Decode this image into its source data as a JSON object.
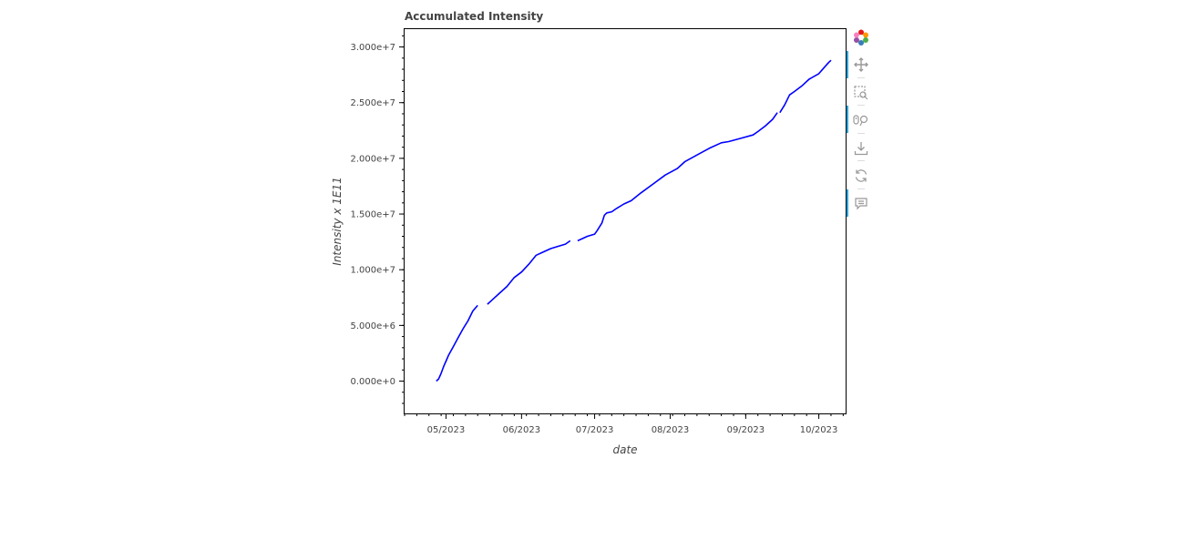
{
  "chart_data": {
    "type": "line",
    "title": "Accumulated Intensity",
    "xlabel": "date",
    "ylabel": "Intensity x 1E11",
    "x_ticks": [
      "05/2023",
      "06/2023",
      "07/2023",
      "08/2023",
      "09/2023",
      "10/2023"
    ],
    "y_ticks": [
      "0.000e+0",
      "5.000e+6",
      "1.000e+7",
      "1.500e+7",
      "2.000e+7",
      "2.500e+7",
      "3.000e+7"
    ],
    "xlim": [
      "2023-04-14",
      "2023-10-12"
    ],
    "ylim": [
      -2900000,
      31600000
    ],
    "grid": false,
    "legend": "none",
    "color": "#0000ff",
    "series": [
      {
        "segments": [
          [
            [
              "2023-04-27",
              0
            ],
            [
              "2023-04-28",
              200000
            ],
            [
              "2023-04-29",
              700000
            ],
            [
              "2023-04-30",
              1300000
            ],
            [
              "2023-05-01",
              1800000
            ],
            [
              "2023-05-02",
              2300000
            ],
            [
              "2023-05-04",
              3100000
            ],
            [
              "2023-05-06",
              3900000
            ],
            [
              "2023-05-08",
              4700000
            ],
            [
              "2023-05-10",
              5400000
            ],
            [
              "2023-05-12",
              6300000
            ],
            [
              "2023-05-14",
              6800000
            ]
          ],
          [
            [
              "2023-05-18",
              6900000
            ],
            [
              "2023-05-20",
              7300000
            ],
            [
              "2023-05-23",
              7900000
            ],
            [
              "2023-05-26",
              8500000
            ],
            [
              "2023-05-29",
              9300000
            ],
            [
              "2023-06-01",
              9800000
            ],
            [
              "2023-06-04",
              10500000
            ],
            [
              "2023-06-07",
              11300000
            ],
            [
              "2023-06-10",
              11600000
            ],
            [
              "2023-06-13",
              11900000
            ],
            [
              "2023-06-16",
              12100000
            ],
            [
              "2023-06-19",
              12300000
            ],
            [
              "2023-06-21",
              12600000
            ]
          ],
          [
            [
              "2023-06-24",
              12600000
            ],
            [
              "2023-06-26",
              12800000
            ],
            [
              "2023-06-28",
              13000000
            ],
            [
              "2023-07-01",
              13200000
            ],
            [
              "2023-07-02",
              13500000
            ],
            [
              "2023-07-04",
              14200000
            ],
            [
              "2023-07-05",
              14900000
            ],
            [
              "2023-07-06",
              15100000
            ],
            [
              "2023-07-08",
              15200000
            ],
            [
              "2023-07-10",
              15500000
            ],
            [
              "2023-07-13",
              15900000
            ],
            [
              "2023-07-16",
              16200000
            ],
            [
              "2023-07-20",
              16900000
            ],
            [
              "2023-07-25",
              17700000
            ],
            [
              "2023-07-30",
              18500000
            ],
            [
              "2023-08-04",
              19100000
            ],
            [
              "2023-08-07",
              19700000
            ],
            [
              "2023-08-12",
              20300000
            ],
            [
              "2023-08-17",
              20900000
            ],
            [
              "2023-08-22",
              21400000
            ],
            [
              "2023-08-25",
              21500000
            ],
            [
              "2023-08-30",
              21800000
            ],
            [
              "2023-09-04",
              22100000
            ],
            [
              "2023-09-06",
              22400000
            ],
            [
              "2023-09-09",
              22900000
            ],
            [
              "2023-09-12",
              23500000
            ],
            [
              "2023-09-14",
              24100000
            ]
          ],
          [
            [
              "2023-09-15",
              24100000
            ],
            [
              "2023-09-17",
              24800000
            ],
            [
              "2023-09-19",
              25700000
            ],
            [
              "2023-09-21",
              26000000
            ],
            [
              "2023-09-24",
              26500000
            ],
            [
              "2023-09-27",
              27100000
            ],
            [
              "2023-10-01",
              27600000
            ],
            [
              "2023-10-03",
              28100000
            ],
            [
              "2023-10-05",
              28600000
            ],
            [
              "2023-10-06",
              28800000
            ]
          ]
        ]
      }
    ]
  },
  "toolbar": {
    "tools": [
      {
        "name": "bokeh-logo-icon"
      },
      {
        "name": "pan-icon",
        "active": true
      },
      {
        "name": "box-zoom-icon"
      },
      {
        "name": "wheel-zoom-icon",
        "active": true
      },
      {
        "name": "save-icon"
      },
      {
        "name": "reset-icon"
      },
      {
        "name": "hover-icon",
        "active": true
      }
    ]
  }
}
